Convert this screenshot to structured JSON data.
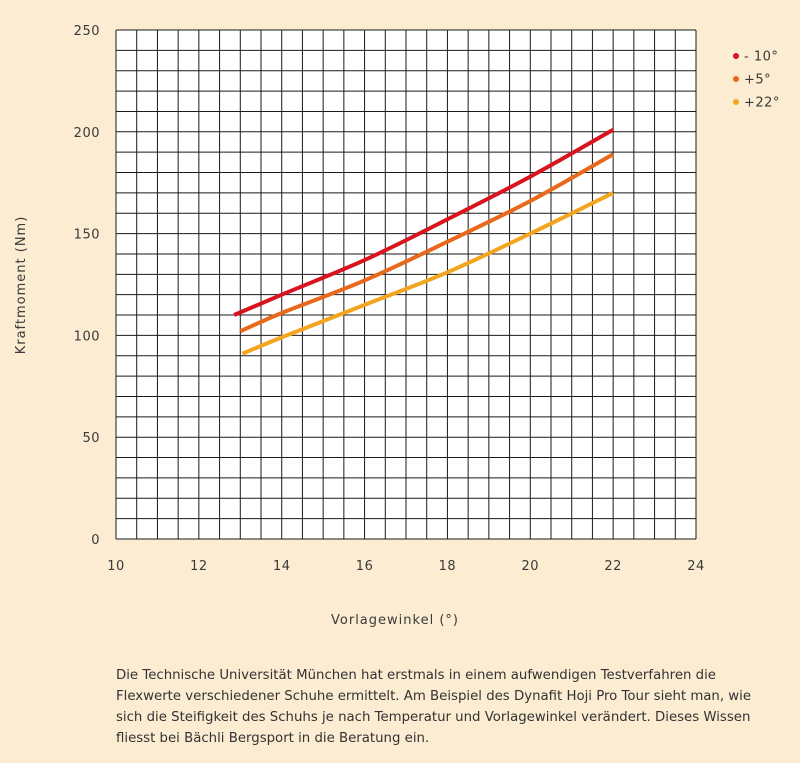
{
  "chart_data": {
    "type": "line",
    "xlabel": "Vorlagewinkel (°)",
    "ylabel": "Kraftmoment (Nm)",
    "xlim": [
      10,
      24
    ],
    "ylim": [
      0,
      250
    ],
    "xticks": [
      10,
      12,
      14,
      16,
      18,
      20,
      22,
      24
    ],
    "yticks": [
      0,
      50,
      100,
      150,
      200,
      250
    ],
    "grid": true,
    "legend_position": "top-right",
    "series": [
      {
        "name": "- 10°",
        "color": "#d7141f",
        "x": [
          12.85,
          14,
          16,
          18,
          20,
          22
        ],
        "y": [
          110,
          120,
          137,
          157,
          178,
          201
        ]
      },
      {
        "name": "+5°",
        "color": "#e8681c",
        "x": [
          13,
          14,
          16,
          18,
          20,
          22
        ],
        "y": [
          102,
          111,
          127,
          146,
          166,
          189
        ]
      },
      {
        "name": "+22°",
        "color": "#f3a520",
        "x": [
          13.05,
          14,
          16,
          18,
          20,
          22
        ],
        "y": [
          91,
          99,
          115,
          131,
          150,
          170
        ]
      }
    ]
  },
  "caption": "Die Technische Universität München hat erstmals in einem aufwendigen Testverfahren die Flexwerte verschiedener Schuhe ermittelt. Am Beispiel des Dynafit Hoji Pro Tour sieht man, wie sich die Steifigkeit des Schuhs je nach Temperatur und Vorlagewinkel verändert. Dieses Wissen fliesst bei Bächli Bergsport in die Beratung ein."
}
